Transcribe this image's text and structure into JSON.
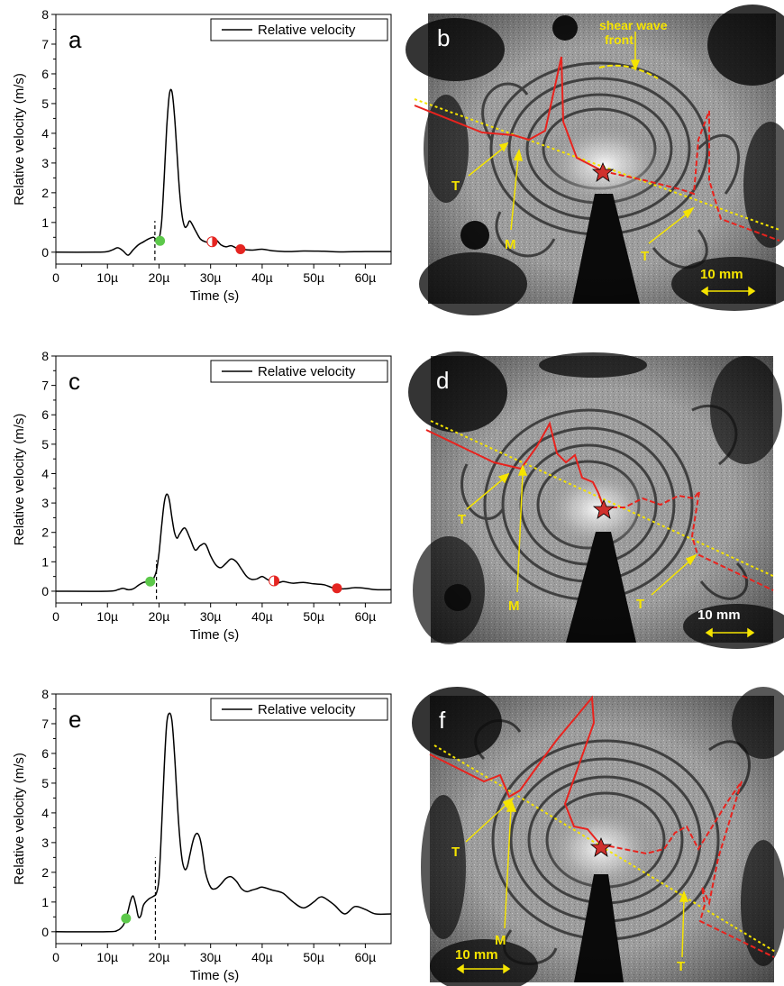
{
  "colors": {
    "curve": "#000000",
    "green_marker": "#5cc84a",
    "red_marker": "#e52521",
    "annotation_yellow": "#f5e400",
    "trace_red": "#e8231e"
  },
  "chart_data": [
    {
      "panel": "a",
      "type": "line",
      "legend": "Relative velocity",
      "legend_position": "top-right",
      "xlabel": "Time (s)",
      "ylabel": "Relative velocity (m/s)",
      "xlim": [
        0,
        65
      ],
      "ylim": [
        -0.4,
        8
      ],
      "xticks": [
        {
          "v": 0,
          "label": "0"
        },
        {
          "v": 10,
          "label": "10µ"
        },
        {
          "v": 20,
          "label": "20µ"
        },
        {
          "v": 30,
          "label": "30µ"
        },
        {
          "v": 40,
          "label": "40µ"
        },
        {
          "v": 50,
          "label": "50µ"
        },
        {
          "v": 60,
          "label": "60µ"
        }
      ],
      "yticks": [
        0,
        1,
        2,
        3,
        4,
        5,
        6,
        7,
        8
      ],
      "dashed_x": 19.2,
      "dashed_top": 1.05,
      "series": [
        {
          "x": [
            0,
            8,
            10,
            11,
            12,
            13,
            14,
            15,
            16,
            17,
            18,
            19,
            19.5,
            20,
            20.5,
            21,
            21.5,
            22,
            22.5,
            23,
            23.5,
            24,
            24.5,
            25,
            25.5,
            26,
            27,
            28,
            29,
            30,
            31,
            32,
            33,
            34,
            35,
            36,
            38,
            40,
            42,
            45,
            48,
            52,
            55,
            60,
            65
          ],
          "y": [
            0,
            0,
            0.02,
            0.08,
            0.15,
            0.05,
            -0.1,
            0.08,
            0.25,
            0.35,
            0.45,
            0.5,
            0.4,
            0.45,
            1.0,
            2.5,
            4.2,
            5.3,
            5.4,
            4.6,
            3.3,
            2.0,
            1.2,
            0.85,
            0.9,
            1.05,
            0.75,
            0.45,
            0.35,
            0.32,
            0.42,
            0.25,
            0.18,
            0.22,
            0.14,
            0.1,
            0.07,
            0.1,
            0.05,
            0.02,
            0.04,
            0.03,
            0.01,
            0.02,
            0.02
          ]
        }
      ],
      "markers": [
        {
          "x": 20.2,
          "y": 0.38,
          "kind": "green"
        },
        {
          "x": 30.3,
          "y": 0.35,
          "kind": "half-red"
        },
        {
          "x": 35.8,
          "y": 0.1,
          "kind": "red"
        }
      ]
    },
    {
      "panel": "c",
      "type": "line",
      "legend": "Relative velocity",
      "legend_position": "top-right",
      "xlabel": "Time (s)",
      "ylabel": "Relative velocity (m/s)",
      "xlim": [
        0,
        65
      ],
      "ylim": [
        -0.4,
        8
      ],
      "xticks": [
        {
          "v": 0,
          "label": "0"
        },
        {
          "v": 10,
          "label": "10µ"
        },
        {
          "v": 20,
          "label": "20µ"
        },
        {
          "v": 30,
          "label": "30µ"
        },
        {
          "v": 40,
          "label": "40µ"
        },
        {
          "v": 50,
          "label": "50µ"
        },
        {
          "v": 60,
          "label": "60µ"
        }
      ],
      "yticks": [
        0,
        1,
        2,
        3,
        4,
        5,
        6,
        7,
        8
      ],
      "dashed_x": 19.5,
      "dashed_top": 1.05,
      "series": [
        {
          "x": [
            0,
            10,
            12,
            13,
            14,
            15,
            16,
            17,
            18,
            18.5,
            19,
            19.5,
            20,
            20.5,
            21,
            21.5,
            22,
            22.5,
            23,
            23.5,
            24,
            25,
            26,
            27,
            28,
            29,
            30,
            31,
            32,
            33,
            34,
            35,
            36,
            37,
            38,
            39,
            40,
            41,
            42,
            43,
            44,
            45,
            46,
            48,
            50,
            52,
            54,
            56,
            58,
            60,
            62,
            65
          ],
          "y": [
            0,
            0,
            0.05,
            0.1,
            0.05,
            0.08,
            0.2,
            0.3,
            0.32,
            0.38,
            0.45,
            0.7,
            1.3,
            2.2,
            3.0,
            3.3,
            3.1,
            2.5,
            2.0,
            1.8,
            1.95,
            2.15,
            1.8,
            1.4,
            1.55,
            1.6,
            1.2,
            0.9,
            0.8,
            0.95,
            1.1,
            1.0,
            0.75,
            0.5,
            0.4,
            0.42,
            0.5,
            0.4,
            0.32,
            0.28,
            0.33,
            0.3,
            0.27,
            0.3,
            0.25,
            0.22,
            0.1,
            0.08,
            0.12,
            0.1,
            0.05,
            0.05
          ]
        }
      ],
      "markers": [
        {
          "x": 18.3,
          "y": 0.33,
          "kind": "green"
        },
        {
          "x": 42.3,
          "y": 0.35,
          "kind": "half-red"
        },
        {
          "x": 54.5,
          "y": 0.1,
          "kind": "red"
        }
      ]
    },
    {
      "panel": "e",
      "type": "line",
      "legend": "Relative velocity",
      "legend_position": "top-right",
      "xlabel": "Time (s)",
      "ylabel": "Relative velocity (m/s)",
      "xlim": [
        0,
        65
      ],
      "ylim": [
        -0.4,
        8
      ],
      "xticks": [
        {
          "v": 0,
          "label": "0"
        },
        {
          "v": 10,
          "label": "10µ"
        },
        {
          "v": 20,
          "label": "20µ"
        },
        {
          "v": 30,
          "label": "30µ"
        },
        {
          "v": 40,
          "label": "40µ"
        },
        {
          "v": 50,
          "label": "50µ"
        },
        {
          "v": 60,
          "label": "60µ"
        }
      ],
      "yticks": [
        0,
        1,
        2,
        3,
        4,
        5,
        6,
        7,
        8
      ],
      "dashed_x": 19.3,
      "dashed_top": 2.5,
      "series": [
        {
          "x": [
            0,
            10,
            12,
            13,
            13.5,
            14,
            14.5,
            15,
            15.5,
            16,
            16.5,
            17,
            18,
            19,
            19.5,
            20,
            20.5,
            21,
            21.5,
            22,
            22.5,
            23,
            23.5,
            24,
            24.5,
            25,
            25.5,
            26,
            26.5,
            27,
            27.5,
            28,
            28.5,
            29,
            30,
            31,
            32,
            33,
            34,
            35,
            36,
            37,
            38,
            39,
            40,
            42,
            44,
            46,
            48,
            50,
            51,
            52,
            54,
            56,
            58,
            60,
            62,
            65
          ],
          "y": [
            0,
            0,
            0.05,
            0.2,
            0.4,
            0.7,
            1.05,
            1.2,
            0.9,
            0.5,
            0.55,
            0.9,
            1.1,
            1.2,
            1.3,
            1.8,
            3.5,
            5.5,
            7.0,
            7.35,
            7.1,
            6.0,
            4.5,
            3.2,
            2.4,
            2.1,
            2.2,
            2.6,
            3.0,
            3.25,
            3.3,
            3.1,
            2.6,
            2.0,
            1.5,
            1.45,
            1.6,
            1.8,
            1.85,
            1.7,
            1.45,
            1.35,
            1.4,
            1.45,
            1.5,
            1.4,
            1.3,
            1.0,
            0.8,
            1.0,
            1.15,
            1.15,
            0.9,
            0.6,
            0.85,
            0.75,
            0.6,
            0.6
          ]
        }
      ],
      "markers": [
        {
          "x": 13.6,
          "y": 0.45,
          "kind": "green"
        }
      ]
    }
  ],
  "images": [
    {
      "panel": "b",
      "scale_bar": "10 mm",
      "labels": {
        "T1": "T",
        "M": "M",
        "T2": "T"
      },
      "annotation_line1": "shear wave",
      "annotation_line2": "front"
    },
    {
      "panel": "d",
      "scale_bar": "10 mm",
      "labels": {
        "T1": "T",
        "M": "M",
        "T2": "T"
      }
    },
    {
      "panel": "f",
      "scale_bar": "10 mm",
      "labels": {
        "T1": "T",
        "M": "M",
        "T2": "T"
      }
    }
  ]
}
